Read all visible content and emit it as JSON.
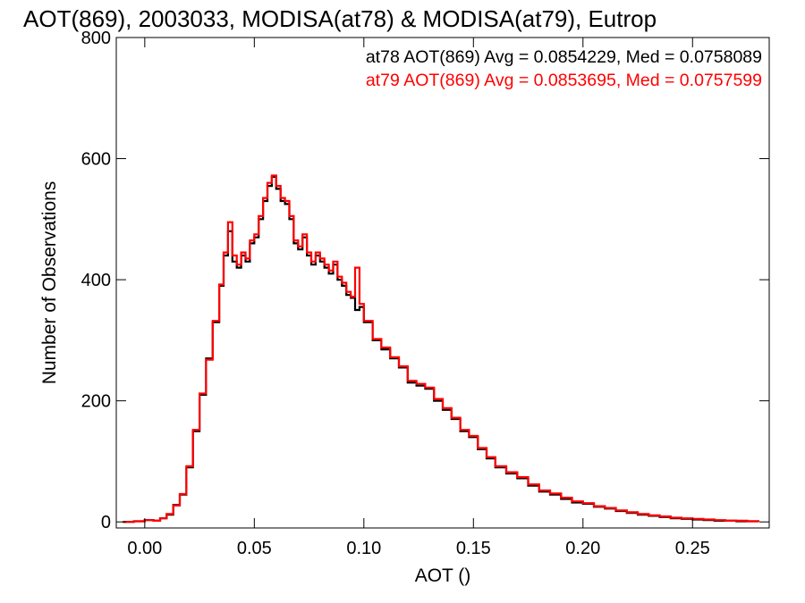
{
  "chart_data": {
    "type": "histogram",
    "title": "AOT(869), 2003033, MODISA(at78) & MODISA(at79), Eutrop",
    "xlabel": "AOT ()",
    "ylabel": "Number of Observations",
    "xlim": [
      -0.013,
      0.285
    ],
    "ylim": [
      -10,
      800
    ],
    "xticks": [
      0.0,
      0.05,
      0.1,
      0.15,
      0.2,
      0.25
    ],
    "xtick_labels": [
      "0.00",
      "0.05",
      "0.10",
      "0.15",
      "0.20",
      "0.25"
    ],
    "yticks": [
      0,
      200,
      400,
      600,
      800
    ],
    "ytick_labels": [
      "0",
      "200",
      "400",
      "600",
      "800"
    ],
    "grid": false,
    "legend_position": "top-right",
    "series": [
      {
        "name": "at78",
        "label": "at78 AOT(869) Avg = 0.0854229, Med = 0.0758089",
        "color": "#000000",
        "stats": {
          "avg": 0.0854229,
          "med": 0.0758089
        },
        "points": [
          [
            -0.01,
            0
          ],
          [
            -0.005,
            1
          ],
          [
            0.0,
            3
          ],
          [
            0.004,
            2
          ],
          [
            0.007,
            6
          ],
          [
            0.01,
            12
          ],
          [
            0.013,
            28
          ],
          [
            0.016,
            45
          ],
          [
            0.019,
            90
          ],
          [
            0.022,
            150
          ],
          [
            0.025,
            210
          ],
          [
            0.028,
            270
          ],
          [
            0.031,
            330
          ],
          [
            0.034,
            390
          ],
          [
            0.036,
            440
          ],
          [
            0.038,
            480
          ],
          [
            0.04,
            430
          ],
          [
            0.042,
            420
          ],
          [
            0.044,
            440
          ],
          [
            0.046,
            430
          ],
          [
            0.048,
            460
          ],
          [
            0.05,
            470
          ],
          [
            0.052,
            500
          ],
          [
            0.054,
            530
          ],
          [
            0.056,
            555
          ],
          [
            0.058,
            570
          ],
          [
            0.06,
            550
          ],
          [
            0.062,
            530
          ],
          [
            0.064,
            525
          ],
          [
            0.066,
            500
          ],
          [
            0.068,
            460
          ],
          [
            0.07,
            450
          ],
          [
            0.072,
            470
          ],
          [
            0.074,
            440
          ],
          [
            0.076,
            425
          ],
          [
            0.078,
            440
          ],
          [
            0.08,
            430
          ],
          [
            0.082,
            420
          ],
          [
            0.084,
            410
          ],
          [
            0.086,
            425
          ],
          [
            0.088,
            400
          ],
          [
            0.09,
            390
          ],
          [
            0.092,
            375
          ],
          [
            0.094,
            370
          ],
          [
            0.096,
            350
          ],
          [
            0.098,
            355
          ],
          [
            0.1,
            330
          ],
          [
            0.104,
            300
          ],
          [
            0.108,
            285
          ],
          [
            0.112,
            270
          ],
          [
            0.116,
            255
          ],
          [
            0.12,
            230
          ],
          [
            0.124,
            225
          ],
          [
            0.128,
            220
          ],
          [
            0.132,
            200
          ],
          [
            0.136,
            185
          ],
          [
            0.14,
            170
          ],
          [
            0.144,
            150
          ],
          [
            0.148,
            140
          ],
          [
            0.152,
            120
          ],
          [
            0.156,
            105
          ],
          [
            0.16,
            90
          ],
          [
            0.165,
            80
          ],
          [
            0.17,
            72
          ],
          [
            0.175,
            60
          ],
          [
            0.18,
            50
          ],
          [
            0.185,
            45
          ],
          [
            0.19,
            38
          ],
          [
            0.195,
            32
          ],
          [
            0.2,
            30
          ],
          [
            0.205,
            25
          ],
          [
            0.21,
            22
          ],
          [
            0.215,
            18
          ],
          [
            0.22,
            15
          ],
          [
            0.225,
            12
          ],
          [
            0.23,
            10
          ],
          [
            0.235,
            8
          ],
          [
            0.24,
            6
          ],
          [
            0.245,
            5
          ],
          [
            0.25,
            4
          ],
          [
            0.255,
            3
          ],
          [
            0.26,
            2
          ],
          [
            0.265,
            2
          ],
          [
            0.27,
            1
          ],
          [
            0.275,
            1
          ],
          [
            0.28,
            0
          ]
        ]
      },
      {
        "name": "at79",
        "label": "at79 AOT(869) Avg = 0.0853695, Med = 0.0757599",
        "color": "#ff0000",
        "stats": {
          "avg": 0.0853695,
          "med": 0.0757599
        },
        "points": [
          [
            -0.01,
            0
          ],
          [
            -0.005,
            1
          ],
          [
            0.0,
            3
          ],
          [
            0.004,
            2
          ],
          [
            0.007,
            6
          ],
          [
            0.01,
            13
          ],
          [
            0.013,
            27
          ],
          [
            0.016,
            46
          ],
          [
            0.019,
            92
          ],
          [
            0.022,
            152
          ],
          [
            0.025,
            212
          ],
          [
            0.028,
            268
          ],
          [
            0.031,
            332
          ],
          [
            0.034,
            392
          ],
          [
            0.036,
            445
          ],
          [
            0.038,
            495
          ],
          [
            0.04,
            440
          ],
          [
            0.042,
            425
          ],
          [
            0.044,
            445
          ],
          [
            0.046,
            435
          ],
          [
            0.048,
            465
          ],
          [
            0.05,
            475
          ],
          [
            0.052,
            505
          ],
          [
            0.054,
            535
          ],
          [
            0.056,
            560
          ],
          [
            0.058,
            572
          ],
          [
            0.06,
            555
          ],
          [
            0.062,
            535
          ],
          [
            0.064,
            530
          ],
          [
            0.066,
            505
          ],
          [
            0.068,
            465
          ],
          [
            0.07,
            455
          ],
          [
            0.072,
            475
          ],
          [
            0.074,
            445
          ],
          [
            0.076,
            430
          ],
          [
            0.078,
            445
          ],
          [
            0.08,
            435
          ],
          [
            0.082,
            425
          ],
          [
            0.084,
            415
          ],
          [
            0.086,
            430
          ],
          [
            0.088,
            405
          ],
          [
            0.09,
            395
          ],
          [
            0.092,
            380
          ],
          [
            0.094,
            372
          ],
          [
            0.096,
            420
          ],
          [
            0.098,
            360
          ],
          [
            0.1,
            332
          ],
          [
            0.104,
            302
          ],
          [
            0.108,
            288
          ],
          [
            0.112,
            272
          ],
          [
            0.116,
            257
          ],
          [
            0.12,
            233
          ],
          [
            0.124,
            228
          ],
          [
            0.128,
            222
          ],
          [
            0.132,
            203
          ],
          [
            0.136,
            188
          ],
          [
            0.14,
            172
          ],
          [
            0.144,
            152
          ],
          [
            0.148,
            142
          ],
          [
            0.152,
            122
          ],
          [
            0.156,
            107
          ],
          [
            0.16,
            92
          ],
          [
            0.165,
            82
          ],
          [
            0.17,
            74
          ],
          [
            0.175,
            62
          ],
          [
            0.18,
            52
          ],
          [
            0.185,
            47
          ],
          [
            0.19,
            40
          ],
          [
            0.195,
            34
          ],
          [
            0.2,
            31
          ],
          [
            0.205,
            26
          ],
          [
            0.21,
            23
          ],
          [
            0.215,
            19
          ],
          [
            0.22,
            16
          ],
          [
            0.225,
            13
          ],
          [
            0.23,
            11
          ],
          [
            0.235,
            9
          ],
          [
            0.24,
            7
          ],
          [
            0.245,
            6
          ],
          [
            0.25,
            5
          ],
          [
            0.255,
            4
          ],
          [
            0.26,
            3
          ],
          [
            0.265,
            2
          ],
          [
            0.27,
            2
          ],
          [
            0.275,
            1
          ],
          [
            0.28,
            0
          ]
        ]
      }
    ]
  }
}
